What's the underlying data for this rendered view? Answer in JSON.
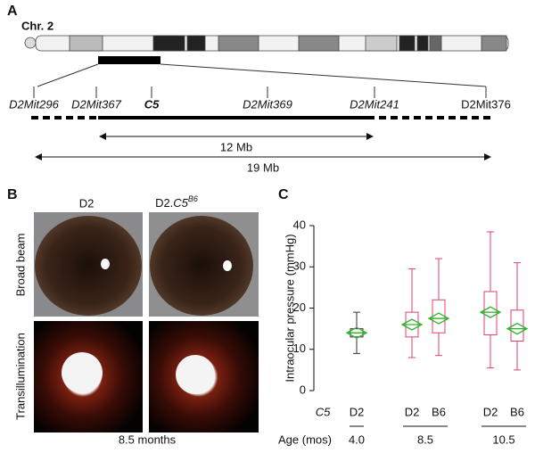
{
  "panel_a": {
    "label": "A",
    "chromosome": "Chr. 2",
    "markers": [
      "D2Mit296",
      "D2Mit367",
      "C5",
      "D2Mit369",
      "D2Mit241",
      "D2Mit376"
    ],
    "interval_short": "12 Mb",
    "interval_long": "19 Mb"
  },
  "panel_b": {
    "label": "B",
    "column_1": "D2",
    "column_2": {
      "base": "D2.",
      "gene": "C5",
      "superscript": "B6"
    },
    "row_1": "Broad beam",
    "row_2": "Transillumination",
    "footer": "8.5 months"
  },
  "chart_data": {
    "type": "box",
    "label": "C",
    "ylabel": "Intraocular pressure (mmHg)",
    "ylim": [
      0,
      40
    ],
    "yticks": [
      0,
      10,
      20,
      30,
      40
    ],
    "row_label": "C5",
    "categories": [
      "D2",
      "D2",
      "B6",
      "D2",
      "B6"
    ],
    "age_label": "Age (mos)",
    "ages": [
      "4.0",
      "8.5",
      "10.5"
    ],
    "mean_color": "#2db52d",
    "boxes": [
      {
        "min": 9,
        "q1": 13,
        "median": 14,
        "q3": 15,
        "max": 19,
        "mean": 14,
        "color": "#333333"
      },
      {
        "min": 8,
        "q1": 13,
        "median": 16,
        "q3": 19,
        "max": 29.5,
        "mean": 16,
        "color": "#e0406a"
      },
      {
        "min": 8.5,
        "q1": 14,
        "median": 17.5,
        "q3": 22,
        "max": 32,
        "mean": 17.5,
        "color": "#e0406a"
      },
      {
        "min": 5.5,
        "q1": 13.5,
        "median": 19,
        "q3": 24,
        "max": 38.5,
        "mean": 19,
        "color": "#e0406a"
      },
      {
        "min": 5,
        "q1": 12,
        "median": 15,
        "q3": 19.5,
        "max": 31,
        "mean": 15,
        "color": "#e0406a"
      }
    ]
  }
}
